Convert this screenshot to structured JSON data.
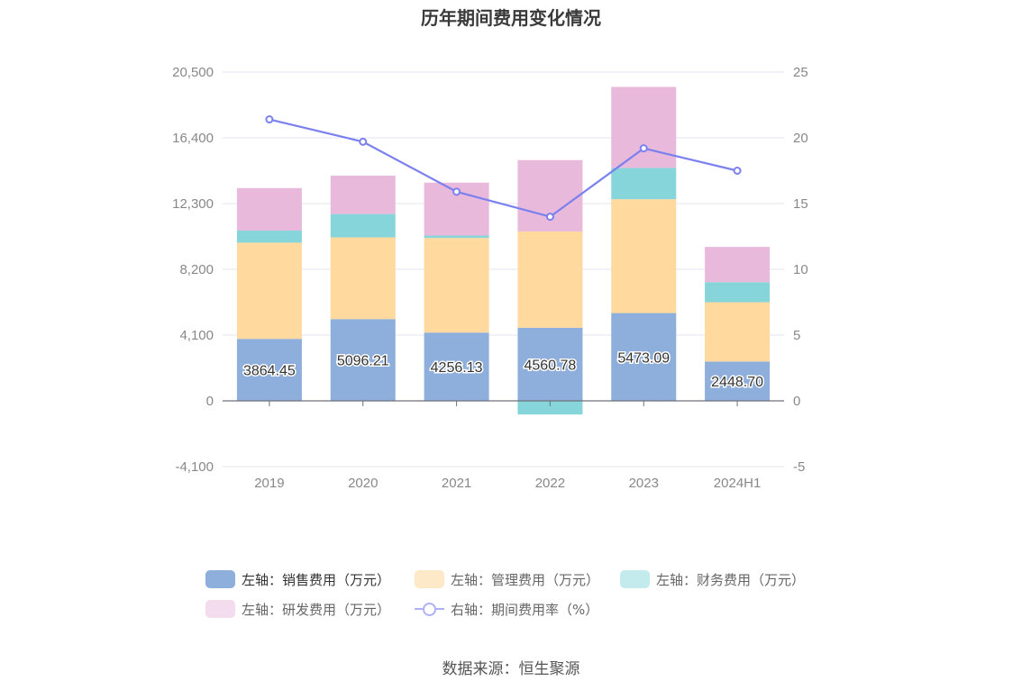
{
  "title": "历年期间费用变化情况",
  "source": "数据来源：恒生聚源",
  "chart_data": {
    "type": "bar",
    "stacked": true,
    "categories": [
      "2019",
      "2020",
      "2021",
      "2022",
      "2023",
      "2024H1"
    ],
    "left_axis": {
      "ticks": [
        "20,500",
        "16,400",
        "12,300",
        "8,200",
        "4,100",
        "0",
        "-4,100"
      ],
      "ylim": [
        -4100,
        20500
      ]
    },
    "right_axis": {
      "ticks": [
        "25",
        "20",
        "15",
        "10",
        "5",
        "0",
        "-5"
      ],
      "ylim": [
        -5,
        25
      ]
    },
    "grid": true,
    "legend_position": "bottom",
    "series": [
      {
        "name": "左轴：销售费用（万元）",
        "color": "#8eaedb",
        "axis": "left",
        "values": [
          3864.45,
          5096.21,
          4256.13,
          4560.78,
          5473.09,
          2448.7
        ],
        "labels": [
          "3864.45",
          "5096.21",
          "4256.13",
          "4560.78",
          "5473.09",
          "2448.70"
        ]
      },
      {
        "name": "左轴：管理费用（万元）",
        "color": "#ffd99e",
        "legend_color": "#fde8c8",
        "axis": "left",
        "values": [
          6000,
          5100,
          5900,
          6000,
          7100,
          3700
        ]
      },
      {
        "name": "左轴：财务费用（万元）",
        "color": "#86d5da",
        "legend_color": "#c3eaec",
        "axis": "left",
        "values": [
          750,
          1450,
          150,
          -850,
          1950,
          1250
        ]
      },
      {
        "name": "左轴：研发费用（万元）",
        "color": "#e8b9db",
        "legend_color": "#f3dced",
        "axis": "left",
        "values": [
          2650,
          2400,
          3300,
          4450,
          5050,
          2200
        ]
      },
      {
        "name": "右轴：期间费用率（%）",
        "color": "#7b80ef",
        "axis": "right",
        "type": "line",
        "values": [
          21.4,
          19.7,
          15.9,
          14.0,
          19.2,
          17.5
        ]
      }
    ]
  }
}
